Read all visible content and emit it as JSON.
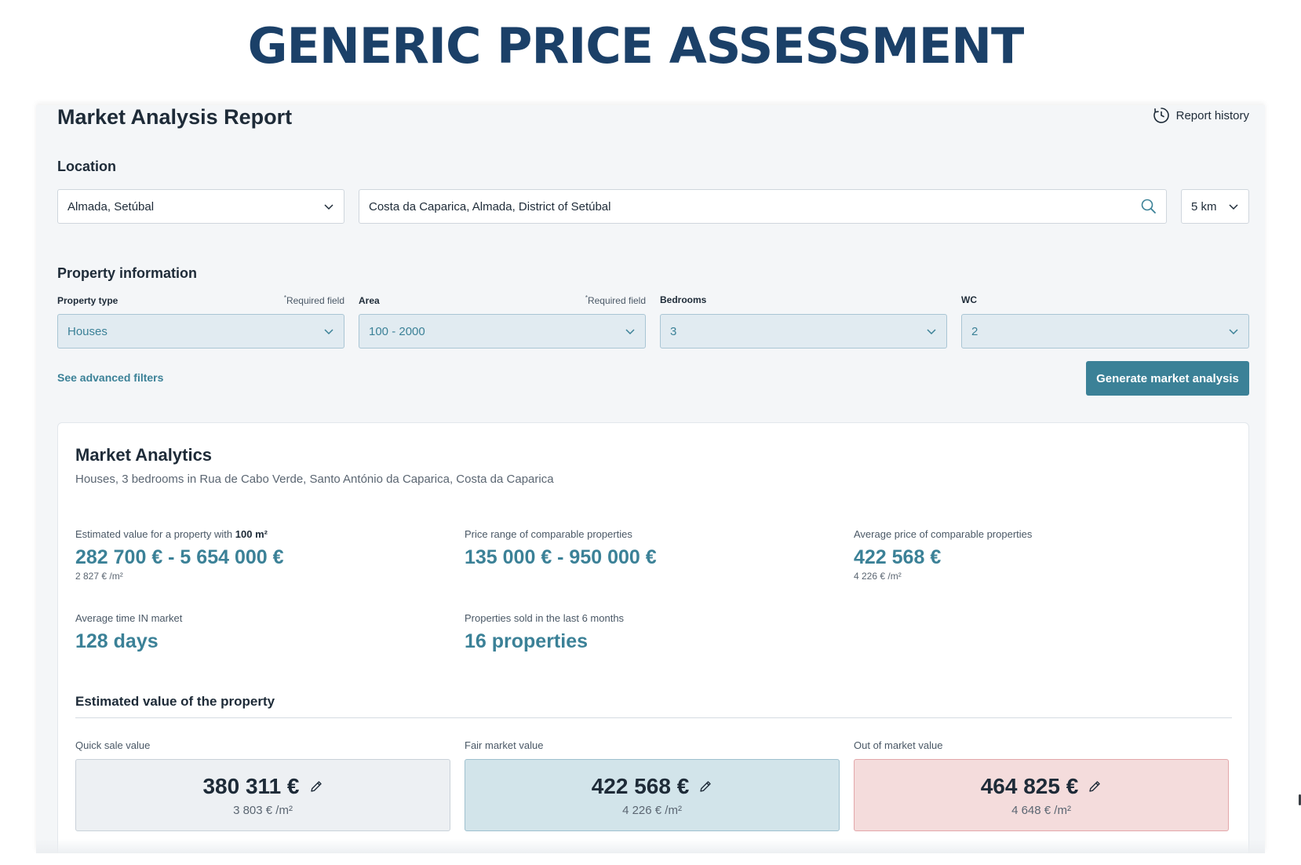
{
  "headline": "GENERIC PRICE ASSESSMENT",
  "report": {
    "title": "Market Analysis Report",
    "history_label": "Report history"
  },
  "location": {
    "section_label": "Location",
    "area_select": "Almada, Setúbal",
    "search_value": "Costa da Caparica, Almada, District of Setúbal",
    "radius": "5 km"
  },
  "property": {
    "section_label": "Property information",
    "type": {
      "label": "Property type",
      "required": "Required field",
      "value": "Houses"
    },
    "area": {
      "label": "Area",
      "required": "Required field",
      "value": "100 - 2000"
    },
    "bedrooms": {
      "label": "Bedrooms",
      "value": "3"
    },
    "wc": {
      "label": "WC",
      "value": "2"
    },
    "advanced_link": "See advanced filters",
    "generate_button": "Generate market analysis"
  },
  "analytics": {
    "title": "Market Analytics",
    "subtitle": "Houses, 3 bedrooms in Rua de Cabo Verde, Santo António da Caparica, Costa da Caparica",
    "estimated": {
      "label_prefix": "Estimated value for a property with",
      "label_area": "100 m²",
      "value": "282 700 € - 5 654 000 €",
      "per_m2": "2 827 € /m²"
    },
    "price_range": {
      "label": "Price range of comparable properties",
      "value": "135 000 € - 950 000 €"
    },
    "average_price": {
      "label": "Average price of comparable properties",
      "value": "422 568 €",
      "per_m2": "4 226 € /m²"
    },
    "avg_time": {
      "label": "Average time IN market",
      "value": "128 days"
    },
    "sold": {
      "label": "Properties sold in the last 6 months",
      "value": "16 properties"
    }
  },
  "estimate": {
    "title": "Estimated value of the property",
    "quick": {
      "label": "Quick sale value",
      "value": "380 311 €",
      "per_m2": "3 803 € /m²"
    },
    "fair": {
      "label": "Fair market value",
      "value": "422 568 €",
      "per_m2": "4 226 € /m²"
    },
    "out": {
      "label": "Out of market value",
      "value": "464 825 €",
      "per_m2": "4 648 € /m²"
    }
  },
  "colors": {
    "brand": "#1b4068",
    "accent": "#3b8197",
    "quick_bg": "#edf0f3",
    "fair_bg": "#d2e4ea",
    "out_bg": "#f4dcdc"
  },
  "icons": {
    "history": "history-clock-icon",
    "dropdown": "chevron-down-icon",
    "search": "search-icon",
    "edit": "pencil-icon"
  }
}
